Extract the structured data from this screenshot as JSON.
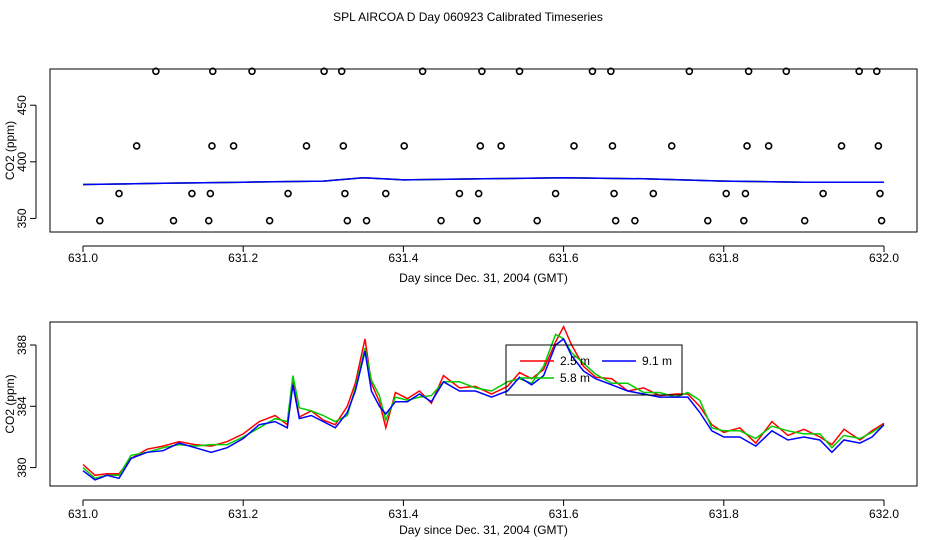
{
  "title": "SPL AIRCOA D  Day 060923  Calibrated Timeseries",
  "chart_data": [
    {
      "type": "scatter",
      "name": "top-panel",
      "xlabel": "Day since Dec. 31, 2004 (GMT)",
      "ylabel": "CO2 (ppm)",
      "xlim": [
        631.0,
        632.0
      ],
      "ylim": [
        338,
        482
      ],
      "xticks": [
        "631.0",
        "631.2",
        "631.4",
        "631.6",
        "631.8",
        "632.0"
      ],
      "xtick_values": [
        631.0,
        631.2,
        631.4,
        631.6,
        631.8,
        632.0
      ],
      "yticks": [
        "350",
        "400",
        "450"
      ],
      "ytick_values": [
        350,
        400,
        450
      ],
      "points": [
        [
          631.021,
          348
        ],
        [
          631.045,
          372
        ],
        [
          631.067,
          414
        ],
        [
          631.091,
          480
        ],
        [
          631.113,
          348
        ],
        [
          631.136,
          372
        ],
        [
          631.157,
          348
        ],
        [
          631.159,
          372
        ],
        [
          631.161,
          414
        ],
        [
          631.162,
          480
        ],
        [
          631.188,
          414
        ],
        [
          631.211,
          480
        ],
        [
          631.233,
          348
        ],
        [
          631.256,
          372
        ],
        [
          631.279,
          414
        ],
        [
          631.301,
          480
        ],
        [
          631.323,
          480
        ],
        [
          631.325,
          414
        ],
        [
          631.327,
          372
        ],
        [
          631.33,
          348
        ],
        [
          631.354,
          348
        ],
        [
          631.378,
          372
        ],
        [
          631.401,
          414
        ],
        [
          631.424,
          480
        ],
        [
          631.447,
          348
        ],
        [
          631.47,
          372
        ],
        [
          631.492,
          348
        ],
        [
          631.494,
          372
        ],
        [
          631.496,
          414
        ],
        [
          631.498,
          480
        ],
        [
          631.522,
          414
        ],
        [
          631.545,
          480
        ],
        [
          631.567,
          348
        ],
        [
          631.59,
          372
        ],
        [
          631.613,
          414
        ],
        [
          631.636,
          480
        ],
        [
          631.659,
          480
        ],
        [
          631.661,
          414
        ],
        [
          631.663,
          372
        ],
        [
          631.665,
          348
        ],
        [
          631.689,
          348
        ],
        [
          631.712,
          372
        ],
        [
          631.735,
          414
        ],
        [
          631.757,
          480
        ],
        [
          631.78,
          348
        ],
        [
          631.803,
          372
        ],
        [
          631.825,
          348
        ],
        [
          631.827,
          372
        ],
        [
          631.829,
          414
        ],
        [
          631.831,
          480
        ],
        [
          631.856,
          414
        ],
        [
          631.878,
          480
        ],
        [
          631.901,
          348
        ],
        [
          631.924,
          372
        ],
        [
          631.947,
          414
        ],
        [
          631.969,
          480
        ],
        [
          631.991,
          480
        ],
        [
          631.993,
          414
        ],
        [
          631.995,
          372
        ],
        [
          631.997,
          348
        ]
      ],
      "series": [
        {
          "name": "2.5 m",
          "color": "#ff0000",
          "x": [
            631.0,
            631.1,
            631.2,
            631.3,
            631.35,
            631.4,
            631.5,
            631.6,
            631.7,
            631.8,
            631.9,
            632.0
          ],
          "y": [
            380,
            381,
            382,
            383,
            386,
            384,
            385,
            386,
            385,
            383,
            382,
            382
          ]
        },
        {
          "name": "5.8 m",
          "color": "#00cc00",
          "x": [
            631.0,
            631.1,
            631.2,
            631.3,
            631.35,
            631.4,
            631.5,
            631.6,
            631.7,
            631.8,
            631.9,
            632.0
          ],
          "y": [
            380,
            381,
            382,
            383,
            386,
            384,
            385,
            386,
            385,
            383,
            382,
            382
          ]
        },
        {
          "name": "9.1 m",
          "color": "#0000ff",
          "x": [
            631.0,
            631.1,
            631.2,
            631.3,
            631.35,
            631.4,
            631.5,
            631.6,
            631.7,
            631.8,
            631.9,
            632.0
          ],
          "y": [
            380,
            381,
            382,
            383,
            386,
            384,
            385,
            386,
            385,
            383,
            382,
            382
          ]
        }
      ]
    },
    {
      "type": "line",
      "name": "bottom-panel",
      "xlabel": "Day since Dec. 31, 2004 (GMT)",
      "ylabel": "CO2 (ppm)",
      "xlim": [
        631.0,
        632.0
      ],
      "ylim": [
        378.8,
        389.5
      ],
      "xticks": [
        "631.0",
        "631.2",
        "631.4",
        "631.6",
        "631.8",
        "632.0"
      ],
      "xtick_values": [
        631.0,
        631.2,
        631.4,
        631.6,
        631.8,
        632.0
      ],
      "yticks": [
        "380",
        "384",
        "388"
      ],
      "ytick_values": [
        380,
        384,
        388
      ],
      "x": [
        631.0,
        631.015,
        631.03,
        631.045,
        631.06,
        631.08,
        631.1,
        631.12,
        631.14,
        631.16,
        631.18,
        631.2,
        631.22,
        631.24,
        631.255,
        631.262,
        631.27,
        631.285,
        631.3,
        631.315,
        631.33,
        631.34,
        631.352,
        631.36,
        631.37,
        631.378,
        631.39,
        631.405,
        631.42,
        631.435,
        631.45,
        631.47,
        631.49,
        631.51,
        631.53,
        631.545,
        631.56,
        631.575,
        631.59,
        631.6,
        631.61,
        631.625,
        631.64,
        631.66,
        631.68,
        631.7,
        631.72,
        631.74,
        631.755,
        631.77,
        631.785,
        631.8,
        631.82,
        631.84,
        631.86,
        631.88,
        631.9,
        631.92,
        631.935,
        631.95,
        631.97,
        631.985,
        632.0
      ],
      "series": [
        {
          "name": "2.5 m",
          "color": "#ff0000",
          "y": [
            380.2,
            379.5,
            379.6,
            379.6,
            380.6,
            381.2,
            381.4,
            381.7,
            381.5,
            381.4,
            381.7,
            382.2,
            383.0,
            383.4,
            382.8,
            385.6,
            383.3,
            383.7,
            383.1,
            382.8,
            384.0,
            385.5,
            388.4,
            385.5,
            384.3,
            382.6,
            384.9,
            384.5,
            385.0,
            384.2,
            386.0,
            385.2,
            385.3,
            384.8,
            385.3,
            386.2,
            385.8,
            386.4,
            388.2,
            389.2,
            388.0,
            386.6,
            385.9,
            385.8,
            385.0,
            385.2,
            384.7,
            384.8,
            384.8,
            384.0,
            382.8,
            382.3,
            382.6,
            381.6,
            383.0,
            382.1,
            382.5,
            382.0,
            381.5,
            382.5,
            381.8,
            382.4,
            382.9
          ]
        },
        {
          "name": "5.8 m",
          "color": "#00cc00",
          "y": [
            380.0,
            379.3,
            379.5,
            379.5,
            380.8,
            381.0,
            381.3,
            381.5,
            381.4,
            381.5,
            381.5,
            382.0,
            382.6,
            383.2,
            383.0,
            386.0,
            383.9,
            383.7,
            383.4,
            383.0,
            383.4,
            385.2,
            387.8,
            385.7,
            384.7,
            383.1,
            384.6,
            384.4,
            384.6,
            384.7,
            385.6,
            385.6,
            385.2,
            385.0,
            385.6,
            385.8,
            385.5,
            386.6,
            388.7,
            388.4,
            387.5,
            386.8,
            386.1,
            385.5,
            385.5,
            384.9,
            384.9,
            384.6,
            384.9,
            384.4,
            382.6,
            382.4,
            382.4,
            381.9,
            382.7,
            382.4,
            382.2,
            382.2,
            381.3,
            382.1,
            381.9,
            382.3,
            382.8
          ]
        },
        {
          "name": "9.1 m",
          "color": "#0000ff",
          "y": [
            379.8,
            379.2,
            379.5,
            379.3,
            380.6,
            381.0,
            381.1,
            381.6,
            381.3,
            381.0,
            381.3,
            381.9,
            382.8,
            383.0,
            382.6,
            385.4,
            383.2,
            383.4,
            383.0,
            382.6,
            383.6,
            385.0,
            387.6,
            385.0,
            384.0,
            383.5,
            384.3,
            384.3,
            384.8,
            384.3,
            385.6,
            385.0,
            385.0,
            384.6,
            385.0,
            385.9,
            385.4,
            386.0,
            388.0,
            388.4,
            387.3,
            386.3,
            385.8,
            385.4,
            385.0,
            384.8,
            384.6,
            384.6,
            384.6,
            383.6,
            382.4,
            382.0,
            382.0,
            381.4,
            382.4,
            381.8,
            382.0,
            381.8,
            381.0,
            381.8,
            381.6,
            382.0,
            382.8
          ]
        }
      ],
      "legend": [
        {
          "label": "2.5 m",
          "color": "#ff0000"
        },
        {
          "label": "5.8 m",
          "color": "#00cc00"
        },
        {
          "label": "9.1 m",
          "color": "#0000ff"
        }
      ]
    }
  ]
}
